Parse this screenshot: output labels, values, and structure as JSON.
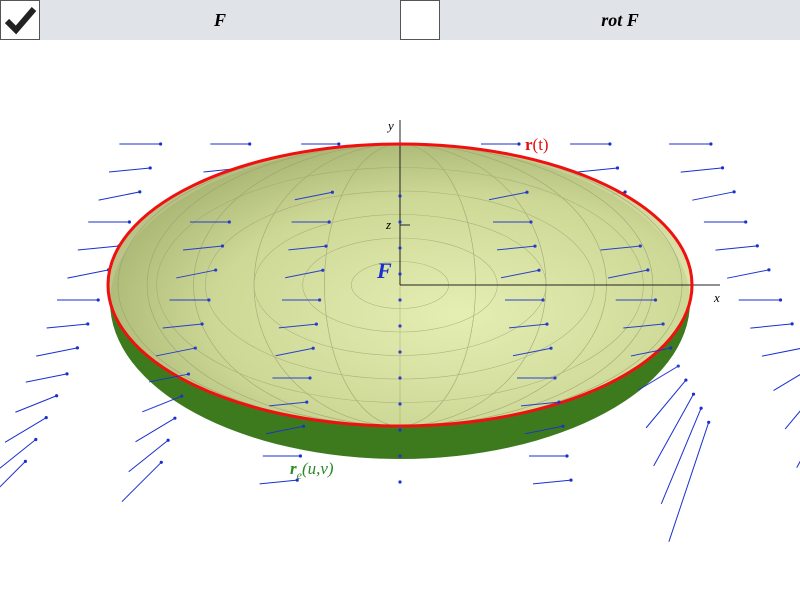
{
  "toolbar": {
    "items": [
      {
        "label": "F",
        "checked": true
      },
      {
        "label": "rot F",
        "checked": false
      }
    ]
  },
  "plot": {
    "axis_labels": {
      "y": "y",
      "x": "x",
      "z": "z"
    },
    "field_label": "F",
    "curve_label": {
      "symbol": "r",
      "args": "(t)"
    },
    "surface_label": {
      "symbol": "r",
      "subscript": "e",
      "args": "(u,v)"
    }
  }
}
